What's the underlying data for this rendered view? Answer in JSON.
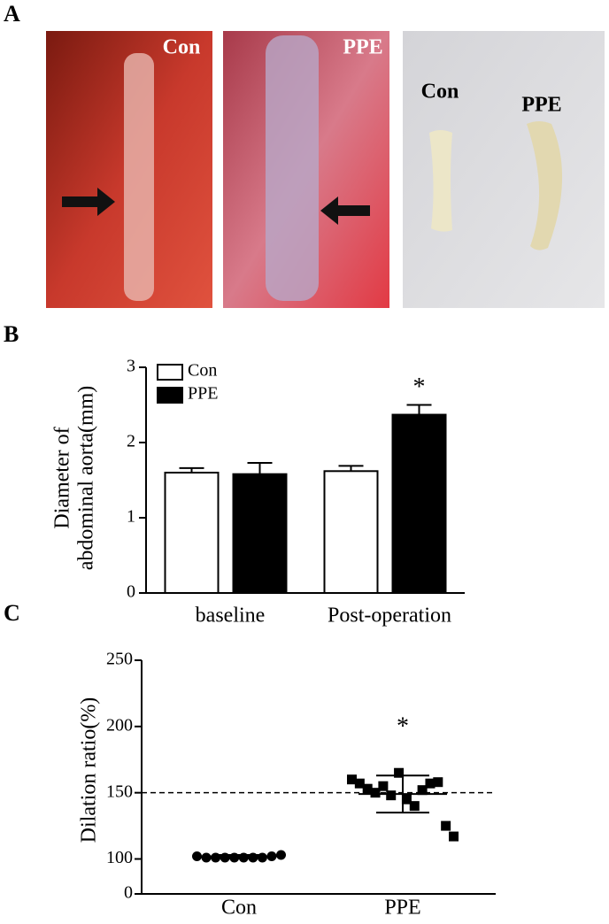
{
  "figure": {
    "panel_labels": [
      "A",
      "B",
      "C"
    ],
    "photo_labels": [
      "Con",
      "PPE",
      "Con",
      "PPE"
    ]
  },
  "chart_data": [
    {
      "type": "bar",
      "y_label": [
        "Diameter of",
        "abdominal aorta(mm)"
      ],
      "categories": [
        "baseline",
        "Post-operation"
      ],
      "series": [
        {
          "name": "Con",
          "color": "#ffffff",
          "values": [
            1.6,
            1.62
          ],
          "errors": [
            0.06,
            0.07
          ]
        },
        {
          "name": "PPE",
          "color": "#000000",
          "values": [
            1.58,
            2.37
          ],
          "errors": [
            0.15,
            0.13
          ]
        }
      ],
      "ylim": [
        0,
        3
      ],
      "yticks": [
        0,
        1,
        2,
        3
      ],
      "legend": "top-left",
      "annotations": [
        {
          "text": "*",
          "category": 1,
          "series": 1
        }
      ]
    },
    {
      "type": "scatter",
      "y_label": "Dilation ratio(%)",
      "categories": [
        "Con",
        "PPE"
      ],
      "groups": [
        {
          "marker": "circle",
          "color": "#000000",
          "values": [
            102,
            101,
            101,
            101,
            101,
            101,
            101,
            101,
            102,
            103
          ],
          "mean": 102,
          "sd": 1
        },
        {
          "marker": "square",
          "color": "#000000",
          "values": [
            160,
            157,
            153,
            150,
            155,
            148,
            165,
            145,
            140,
            152,
            157,
            158,
            125,
            117
          ],
          "mean": 149,
          "sd": 14
        }
      ],
      "ylim": [
        0,
        250
      ],
      "y_break": [
        0,
        95
      ],
      "yticks": [
        0,
        100,
        150,
        200,
        250
      ],
      "reference_line": 150,
      "annotations": [
        {
          "text": "*",
          "category": 1
        }
      ]
    }
  ]
}
